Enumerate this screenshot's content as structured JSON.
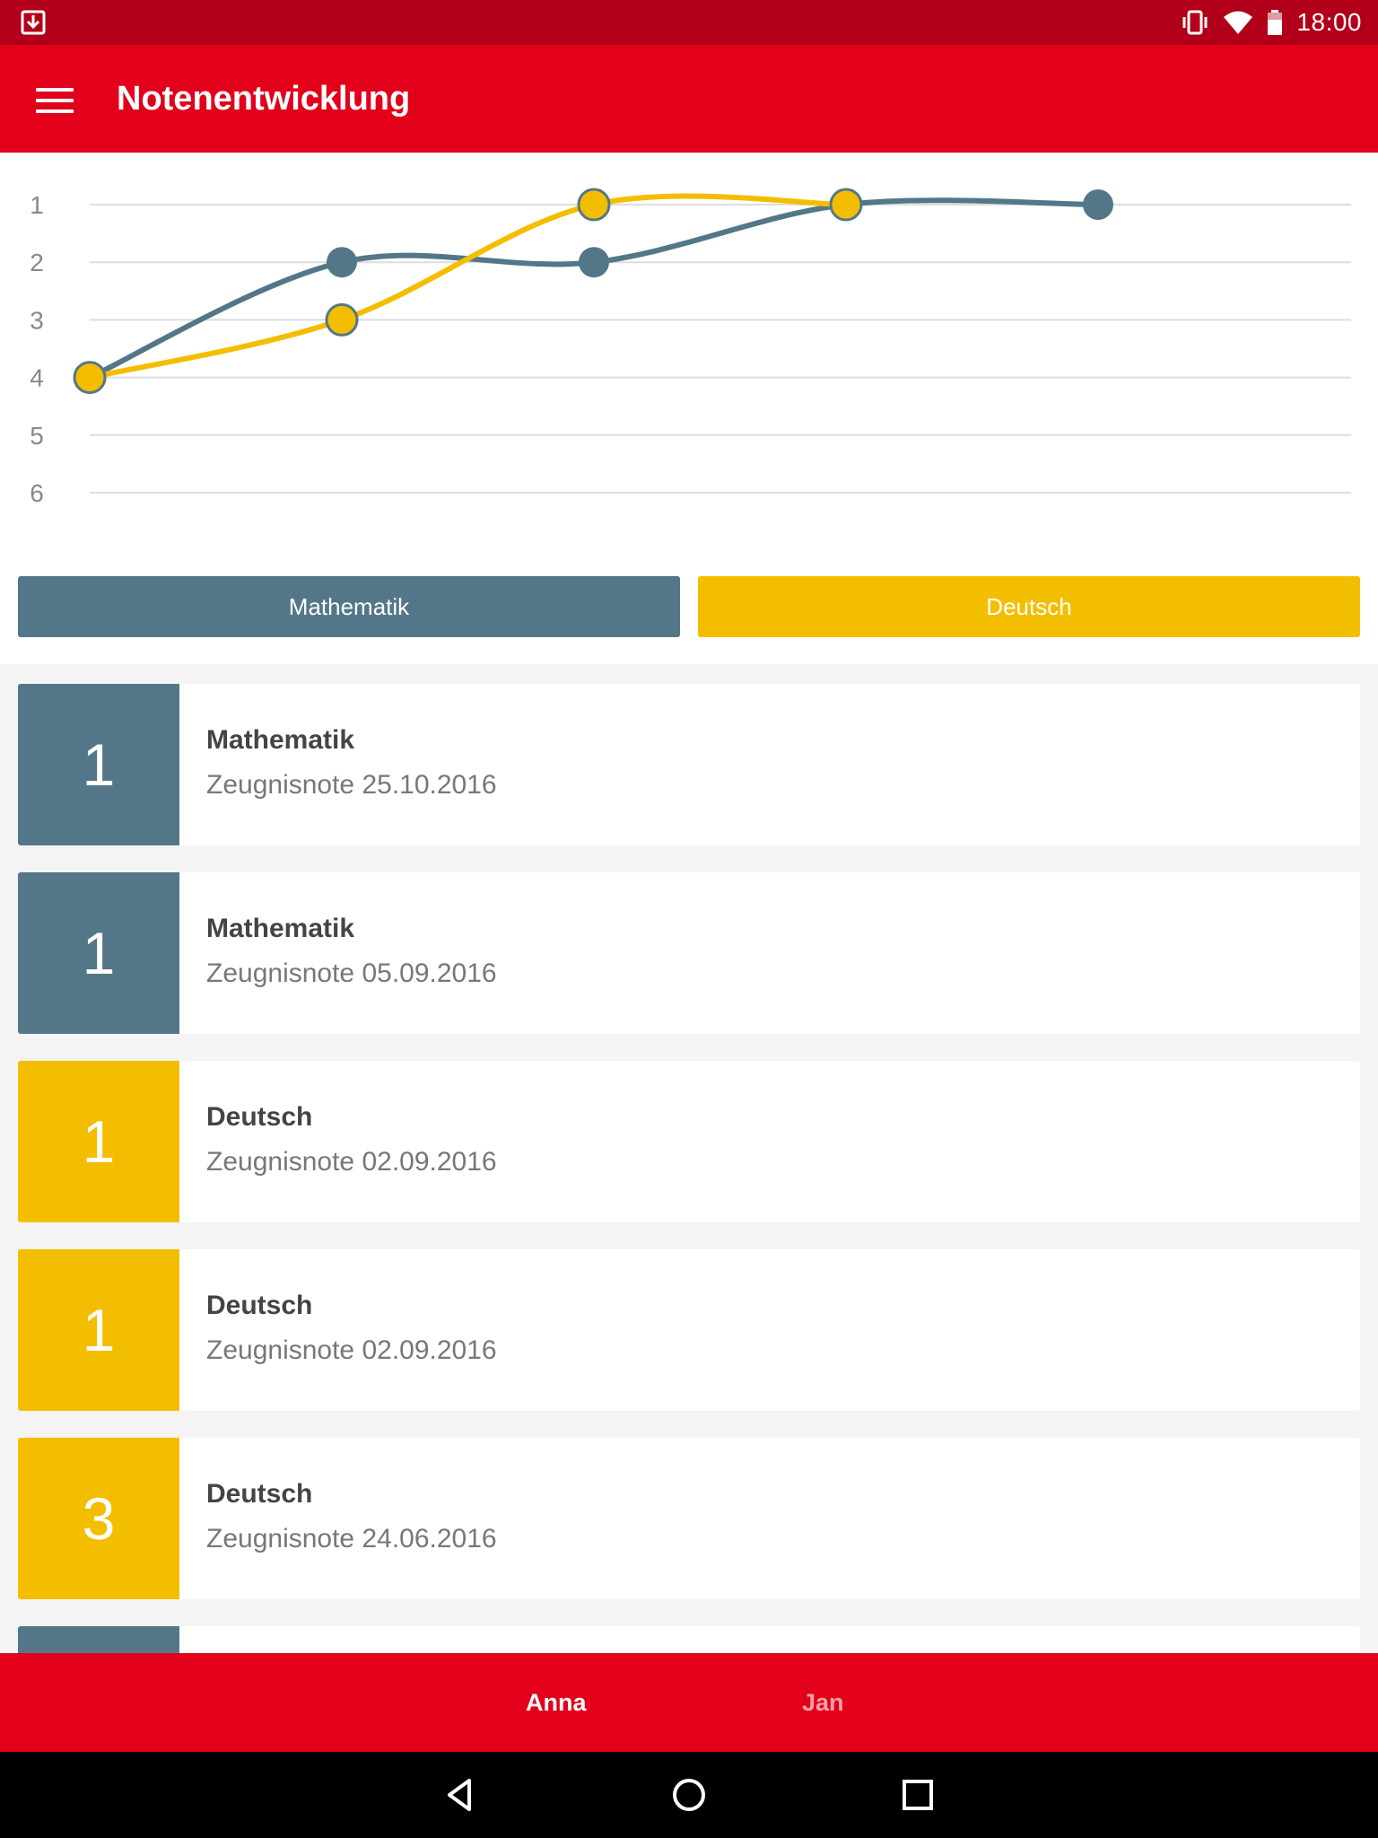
{
  "status_bar": {
    "time": "18:00",
    "icons": [
      "download-icon",
      "vibrate-icon",
      "wifi-icon",
      "battery-icon"
    ]
  },
  "app_bar": {
    "title": "Notenentwicklung",
    "menu_icon": "hamburger-menu-icon"
  },
  "colors": {
    "primary": "#e2001a",
    "status": "#b2001a",
    "mathematik": "#537788",
    "deutsch": "#f4be00"
  },
  "chart_data": {
    "type": "line",
    "x": [
      1,
      2,
      3,
      4,
      5
    ],
    "y_tick_labels": [
      "1",
      "2",
      "3",
      "4",
      "5",
      "6"
    ],
    "ylim": [
      1,
      6
    ],
    "y_inverted": true,
    "grid": true,
    "series": [
      {
        "name": "Mathematik",
        "color": "#537788",
        "values": [
          4,
          2,
          2,
          1,
          1
        ]
      },
      {
        "name": "Deutsch",
        "color": "#f4be00",
        "values": [
          4,
          3,
          1,
          1,
          null
        ]
      }
    ]
  },
  "legend": {
    "math_label": "Mathematik",
    "deutsch_label": "Deutsch"
  },
  "grades": [
    {
      "grade": "1",
      "subject": "Mathematik",
      "date": "Zeugnisnote 25.10.2016",
      "color": "#537788"
    },
    {
      "grade": "1",
      "subject": "Mathematik",
      "date": "Zeugnisnote 05.09.2016",
      "color": "#537788"
    },
    {
      "grade": "1",
      "subject": "Deutsch",
      "date": "Zeugnisnote 02.09.2016",
      "color": "#f4be00"
    },
    {
      "grade": "1",
      "subject": "Deutsch",
      "date": "Zeugnisnote 02.09.2016",
      "color": "#f4be00"
    },
    {
      "grade": "3",
      "subject": "Deutsch",
      "date": "Zeugnisnote 24.06.2016",
      "color": "#f4be00"
    },
    {
      "grade": "",
      "subject": "",
      "date": "",
      "color": "#537788"
    }
  ],
  "bottom_tabs": [
    {
      "label": "Anna",
      "active": true
    },
    {
      "label": "Jan",
      "active": false
    }
  ],
  "nav_bar": [
    "back-icon",
    "home-icon",
    "recents-icon"
  ]
}
